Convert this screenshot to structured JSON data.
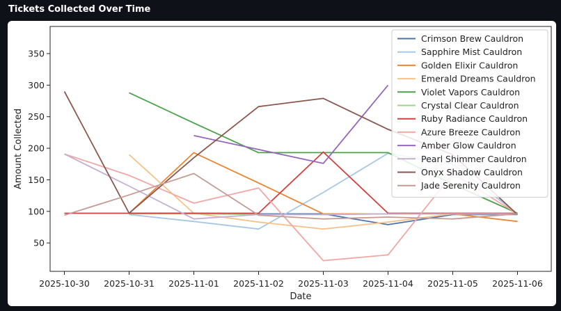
{
  "header": {
    "title": "Tickets Collected Over Time"
  },
  "chart_data": {
    "type": "line",
    "title": "",
    "xlabel": "Date",
    "ylabel": "Amount Collected",
    "x": [
      "2025-10-30",
      "2025-10-31",
      "2025-11-01",
      "2025-11-02",
      "2025-11-03",
      "2025-11-04",
      "2025-11-05",
      "2025-11-06"
    ],
    "ylim": [
      5,
      393
    ],
    "yticks": [
      50,
      100,
      150,
      200,
      250,
      300,
      350
    ],
    "grid": false,
    "legend": "top-right",
    "series": [
      {
        "name": "Crimson Brew Cauldron",
        "color": "#4c72b0",
        "values": [
          null,
          97,
          97,
          96,
          96,
          79,
          95,
          95
        ]
      },
      {
        "name": "Sapphire Mist Cauldron",
        "color": "#a6c8e6",
        "values": [
          null,
          95,
          84,
          72,
          130,
          192,
          175,
          96
        ]
      },
      {
        "name": "Golden Elixir Cauldron",
        "color": "#ee8434",
        "values": [
          null,
          97,
          193,
          145,
          96,
          96,
          96,
          84
        ]
      },
      {
        "name": "Emerald Dreams Cauldron",
        "color": "#f7c28a",
        "values": [
          null,
          190,
          97,
          83,
          72,
          83,
          96,
          96
        ]
      },
      {
        "name": "Violet Vapors Cauldron",
        "color": "#4aa14a",
        "values": [
          null,
          288,
          240,
          193,
          193,
          193,
          143,
          97
        ]
      },
      {
        "name": "Crystal Clear Cauldron",
        "color": "#9bd48a",
        "values": [
          null,
          96,
          96,
          95,
          95,
          96,
          96,
          96
        ]
      },
      {
        "name": "Ruby Radiance Cauldron",
        "color": "#d33f3c",
        "values": [
          97,
          97,
          97,
          97,
          194,
          97,
          97,
          97
        ]
      },
      {
        "name": "Azure Breeze Cauldron",
        "color": "#f2a7a3",
        "values": [
          191,
          157,
          113,
          137,
          22,
          31,
          160,
          96
        ]
      },
      {
        "name": "Amber Glow Cauldron",
        "color": "#9467bd",
        "values": [
          null,
          null,
          220,
          198,
          176,
          300,
          null,
          null
        ]
      },
      {
        "name": "Pearl Shimmer Cauldron",
        "color": "#c5b0d5",
        "values": [
          191,
          140,
          88,
          95,
          95,
          96,
          96,
          96
        ]
      },
      {
        "name": "Onyx Shadow Cauldron",
        "color": "#8c564b",
        "values": [
          290,
          97,
          185,
          266,
          279,
          230,
          190,
          95
        ]
      },
      {
        "name": "Jade Serenity Cauldron",
        "color": "#c49c94",
        "values": [
          94,
          126,
          160,
          94,
          88,
          91,
          88,
          96
        ]
      }
    ]
  }
}
